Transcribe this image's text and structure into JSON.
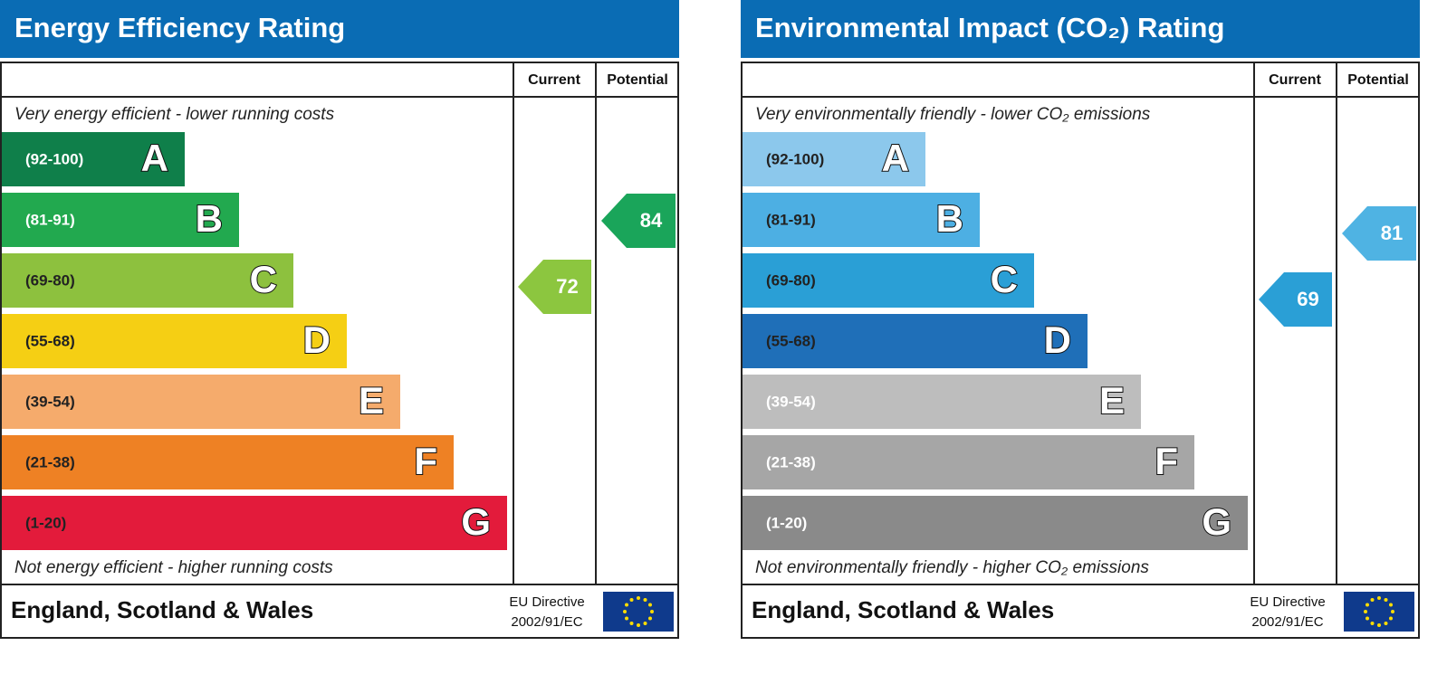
{
  "panels": [
    {
      "title": "Energy Efficiency Rating",
      "columns": [
        "Current",
        "Potential"
      ],
      "top_note": "Very energy efficient - lower running costs",
      "bands": [
        {
          "range": "(92-100)",
          "letter": "A",
          "color": "#0f7f4a"
        },
        {
          "range": "(81-91)",
          "letter": "B",
          "color": "#22a94f"
        },
        {
          "range": "(69-80)",
          "letter": "C",
          "color": "#8dc13e"
        },
        {
          "range": "(55-68)",
          "letter": "D",
          "color": "#f5cf14"
        },
        {
          "range": "(39-54)",
          "letter": "E",
          "color": "#f5ab6c"
        },
        {
          "range": "(21-38)",
          "letter": "F",
          "color": "#ee8124"
        },
        {
          "range": "(1-20)",
          "letter": "G",
          "color": "#e31b3b"
        }
      ],
      "bottom_note": "Not energy efficient - higher running costs",
      "current": {
        "value": 72,
        "color": "#8cc63f"
      },
      "potential": {
        "value": 84,
        "color": "#1aa55a"
      },
      "footer": "England, Scotland & Wales",
      "directive": [
        "EU Directive",
        "2002/91/EC"
      ]
    },
    {
      "title": "Environmental Impact (CO₂) Rating",
      "columns": [
        "Current",
        "Potential"
      ],
      "top_note": "Very environmentally friendly - lower CO₂ emissions",
      "bands": [
        {
          "range": "(92-100)",
          "letter": "A",
          "color": "#8cc8ec"
        },
        {
          "range": "(81-91)",
          "letter": "B",
          "color": "#4dafe3"
        },
        {
          "range": "(69-80)",
          "letter": "C",
          "color": "#2a9fd6"
        },
        {
          "range": "(55-68)",
          "letter": "D",
          "color": "#1f6fb8"
        },
        {
          "range": "(39-54)",
          "letter": "E",
          "color": "#bdbdbd"
        },
        {
          "range": "(21-38)",
          "letter": "F",
          "color": "#a6a6a6"
        },
        {
          "range": "(1-20)",
          "letter": "G",
          "color": "#8a8a8a"
        }
      ],
      "bottom_note": "Not environmentally friendly - higher CO₂ emissions",
      "current": {
        "value": 69,
        "color": "#2a9fd6"
      },
      "potential": {
        "value": 81,
        "color": "#4fb3e3"
      },
      "footer": "England, Scotland & Wales",
      "directive": [
        "EU Directive",
        "2002/91/EC"
      ]
    }
  ]
}
